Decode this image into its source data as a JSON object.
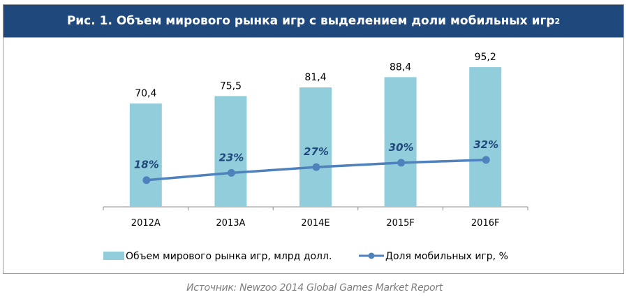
{
  "title": "Рис. 1. Объем мирового рынка игр с выделением доли мобильных игр",
  "title_sup": "2",
  "source": "Источник: Newzoo 2014 Global Games Market Report",
  "colors": {
    "title_bg": "#1f497d",
    "bar": "#92cddc",
    "line": "#4f81bd",
    "line_label": "#1f497d"
  },
  "chart_data": {
    "type": "bar",
    "categories": [
      "2012A",
      "2013A",
      "2014E",
      "2015F",
      "2016F"
    ],
    "series": [
      {
        "name": "Объем мирового рынка игр, млрд долл.",
        "type": "bar",
        "values": [
          70.4,
          75.5,
          81.4,
          88.4,
          95.2
        ],
        "labels": [
          "70,4",
          "75,5",
          "81,4",
          "88,4",
          "95,2"
        ]
      },
      {
        "name": "Доля мобильных игр, %",
        "type": "line",
        "values": [
          18,
          23,
          27,
          30,
          32
        ],
        "labels": [
          "18%",
          "23%",
          "27%",
          "30%",
          "32%"
        ]
      }
    ],
    "title": "Рис. 1. Объем мирового рынка игр с выделением доли мобильных игр",
    "xlabel": "",
    "ylabel": "",
    "ylim": [
      0,
      100
    ],
    "grid": false,
    "legend": "bottom"
  }
}
